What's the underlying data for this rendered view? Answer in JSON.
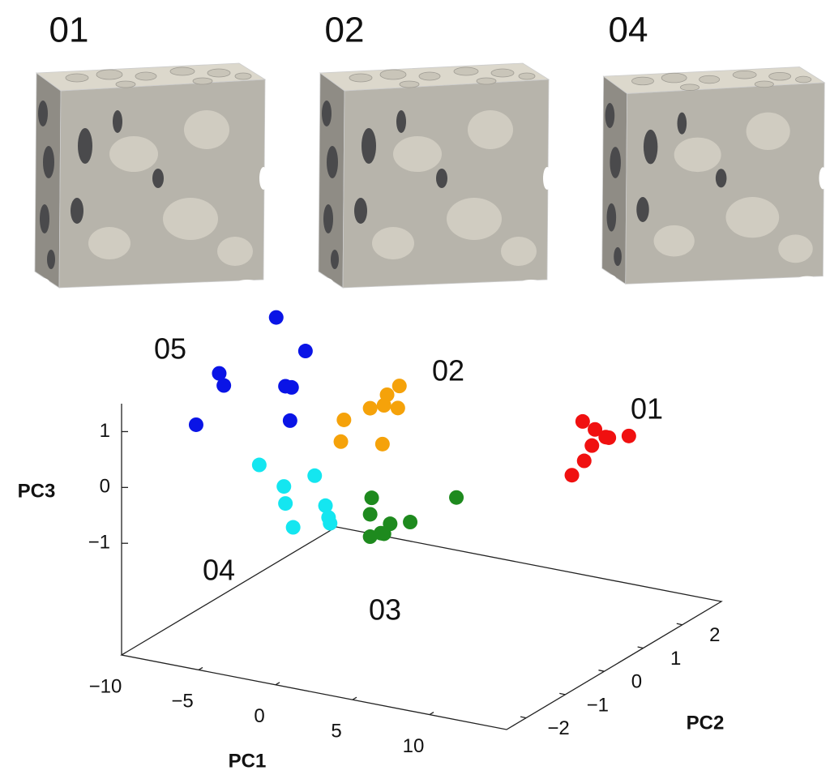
{
  "panels": [
    {
      "label": "01"
    },
    {
      "label": "02"
    },
    {
      "label": "04"
    }
  ],
  "chart_data": {
    "type": "scatter3d",
    "xlabel": "PC1",
    "ylabel": "PC2",
    "zlabel": "PC3",
    "xlim": [
      -10,
      15
    ],
    "ylim": [
      -2.5,
      3
    ],
    "zlim": [
      -3,
      1.5
    ],
    "xticks": [
      {
        "value": -10,
        "label": "−10"
      },
      {
        "value": -5,
        "label": "−5"
      },
      0,
      5,
      10
    ],
    "yticks": [
      {
        "value": -2,
        "label": "−2"
      },
      {
        "value": -1,
        "label": "−1"
      },
      0,
      1,
      2
    ],
    "zticks": [
      {
        "value": -1,
        "label": "−1"
      },
      0,
      1
    ],
    "series": [
      {
        "name": "05",
        "color": "#0a14e6",
        "x": [
          -6.3,
          -4.4,
          -10.0,
          -9.7,
          -5.7,
          -5.3,
          -5.4,
          -11.5
        ],
        "y": [
          0,
          0,
          0,
          0,
          0,
          0,
          0,
          0
        ],
        "z": [
          2.2,
          1.7,
          1.0,
          0.8,
          1.0,
          1.0,
          0.4,
          0.0
        ]
      },
      {
        "name": "02",
        "color": "#f5a20a",
        "x": [
          1.7,
          0.9,
          0.7,
          1.6,
          -0.2,
          -1.9,
          -2.1,
          0.6
        ],
        "y": [
          0,
          0,
          0,
          0,
          0,
          0,
          0,
          0
        ],
        "z": [
          1.4,
          1.2,
          1.0,
          1.0,
          0.9,
          0.6,
          0.2,
          0.3
        ]
      },
      {
        "name": "01",
        "color": "#f01010",
        "x": [
          13.6,
          14.4,
          15.1,
          16.6,
          15.3,
          14.2,
          13.7,
          12.9
        ],
        "y": [
          0,
          0,
          0,
          0,
          0,
          0,
          0,
          0
        ],
        "z": [
          1.4,
          1.3,
          1.2,
          1.3,
          1.2,
          1.0,
          0.7,
          0.4
        ]
      },
      {
        "name": "04",
        "color": "#14e6f0",
        "x": [
          -7.4,
          -3.8,
          -5.8,
          -5.7,
          -3.1,
          -2.9,
          -2.8,
          -5.2
        ],
        "y": [
          0,
          0,
          0,
          0,
          0,
          0,
          0,
          0
        ],
        "z": [
          -0.5,
          -0.5,
          -0.8,
          -1.1,
          -1.0,
          -1.2,
          -1.3,
          -1.5
        ]
      },
      {
        "name": "03",
        "color": "#1e8a1e",
        "x": [
          -0.1,
          5.4,
          -0.2,
          1.1,
          2.4,
          0.7,
          -0.2,
          0.5
        ],
        "y": [
          0,
          0,
          0,
          0,
          0,
          0,
          0,
          0
        ],
        "z": [
          -0.7,
          -0.4,
          -1.0,
          -1.1,
          -1.0,
          -1.3,
          -1.4,
          -1.3
        ]
      }
    ]
  }
}
